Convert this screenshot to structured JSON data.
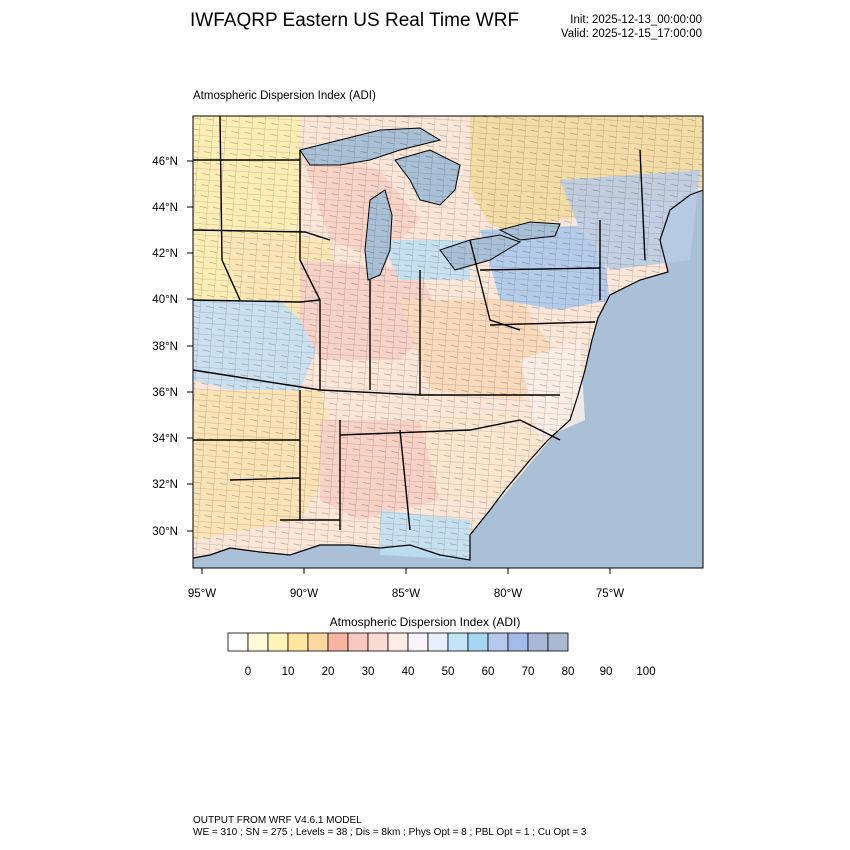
{
  "header": {
    "title": "IWFAQRP Eastern US Real Time WRF",
    "init": "Init: 2025-12-13_00:00:00",
    "valid": "Valid: 2025-12-15_17:00:00"
  },
  "plot": {
    "subtitle": "Atmospheric Dispersion Index   (ADI)",
    "lat_labels": [
      "46°N",
      "44°N",
      "42°N",
      "40°N",
      "38°N",
      "36°N",
      "34°N",
      "32°N",
      "30°N"
    ],
    "lon_labels": [
      "95°W",
      "90°W",
      "85°W",
      "80°W",
      "75°W"
    ]
  },
  "colorbar": {
    "title": "Atmospheric Dispersion Index  (ADI)",
    "tick_labels": [
      "0",
      "10",
      "20",
      "30",
      "40",
      "50",
      "60",
      "70",
      "80",
      "90",
      "100"
    ],
    "colors": [
      "#ffffff",
      "#fffbd8",
      "#fff3b8",
      "#ffe7a0",
      "#fed7a0",
      "#f7b4a0",
      "#f9c9c0",
      "#fbdad2",
      "#fdece6",
      "#f8f2fa",
      "#e8f0fb",
      "#c3e4f6",
      "#a6d6f2",
      "#b6c9ec",
      "#a3bbea",
      "#aab8d8",
      "#a8bbd2"
    ]
  },
  "footer": {
    "line1": "OUTPUT FROM WRF V4.6.1 MODEL",
    "line2": "WE = 310 ; SN = 275 ; Levels = 38 ; Dis = 8km ; Phys Opt = 8 ; PBL Opt = 1 ; Cu Opt = 3"
  },
  "map_colors": {
    "ocean": "#a9c0d6",
    "lake": "#a9c0d6",
    "canada": "#f3dca6"
  }
}
